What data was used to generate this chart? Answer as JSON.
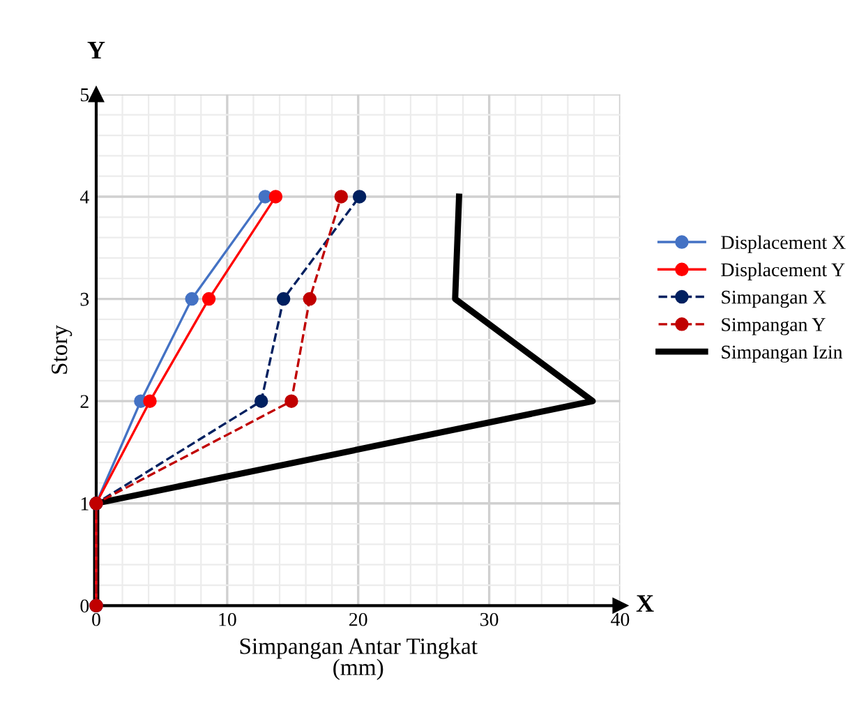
{
  "chart_data": {
    "type": "line",
    "xlabel": "Simpangan Antar Tingkat\n(mm)",
    "ylabel": "Story",
    "annotations": [
      "X",
      "Y"
    ],
    "xlim": [
      0,
      40
    ],
    "xticks": [
      0,
      10,
      20,
      30,
      40
    ],
    "ylim": [
      0,
      5
    ],
    "yticks": [
      0,
      1,
      2,
      3,
      4,
      5
    ],
    "grid": true,
    "legend": "right",
    "series": [
      {
        "name": "Displacement X",
        "color": "#4472c4",
        "marker": "circle",
        "line_style": "solid",
        "x": [
          0,
          0,
          3.4,
          7.3,
          12.9
        ],
        "values": [
          0,
          1,
          2,
          3,
          4
        ]
      },
      {
        "name": "Displacement Y",
        "color": "#ff0000",
        "marker": "circle",
        "line_style": "solid",
        "x": [
          0,
          0,
          4.1,
          8.6,
          13.7
        ],
        "values": [
          0,
          1,
          2,
          3,
          4
        ]
      },
      {
        "name": "Simpangan X",
        "color": "#002060",
        "marker": "circle",
        "line_style": "dashed",
        "x": [
          0,
          0,
          12.6,
          14.3,
          20.1
        ],
        "values": [
          0,
          1,
          2,
          3,
          4
        ]
      },
      {
        "name": "Simpangan Y",
        "color": "#c00000",
        "marker": "circle",
        "line_style": "dashed",
        "x": [
          0,
          0,
          14.9,
          16.3,
          18.7
        ],
        "values": [
          0,
          1,
          2,
          3,
          4
        ]
      },
      {
        "name": "Simpangan Izin",
        "color": "#000000",
        "marker": "none",
        "line_style": "solid",
        "x": [
          0,
          0,
          37.9,
          27.4,
          27.7
        ],
        "values": [
          0,
          1,
          2,
          3,
          4
        ]
      }
    ]
  }
}
